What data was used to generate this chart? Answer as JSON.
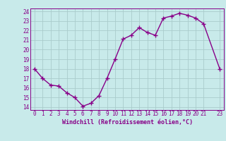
{
  "x": [
    0,
    1,
    2,
    3,
    4,
    5,
    6,
    7,
    8,
    9,
    10,
    11,
    12,
    13,
    14,
    15,
    16,
    17,
    18,
    19,
    20,
    21,
    23
  ],
  "y": [
    18.0,
    17.0,
    16.3,
    16.2,
    15.5,
    15.0,
    14.1,
    14.4,
    15.2,
    17.0,
    19.0,
    21.1,
    21.5,
    22.3,
    21.8,
    21.5,
    23.3,
    23.5,
    23.8,
    23.6,
    23.3,
    22.7,
    18.0
  ],
  "line_color": "#880088",
  "marker_color": "#880088",
  "bg_color": "#c8eaea",
  "grid_color": "#aacccc",
  "xlabel": "Windchill (Refroidissement éolien,°C)",
  "xlim": [
    -0.5,
    23.5
  ],
  "ylim": [
    13.7,
    24.3
  ],
  "yticks": [
    14,
    15,
    16,
    17,
    18,
    19,
    20,
    21,
    22,
    23,
    24
  ],
  "xticks": [
    0,
    1,
    2,
    3,
    4,
    5,
    6,
    7,
    8,
    9,
    10,
    11,
    12,
    13,
    14,
    15,
    16,
    17,
    18,
    19,
    20,
    21,
    23
  ],
  "line_width": 1.0,
  "marker_size": 4.0,
  "tick_fontsize": 5.5,
  "xlabel_fontsize": 6.0
}
